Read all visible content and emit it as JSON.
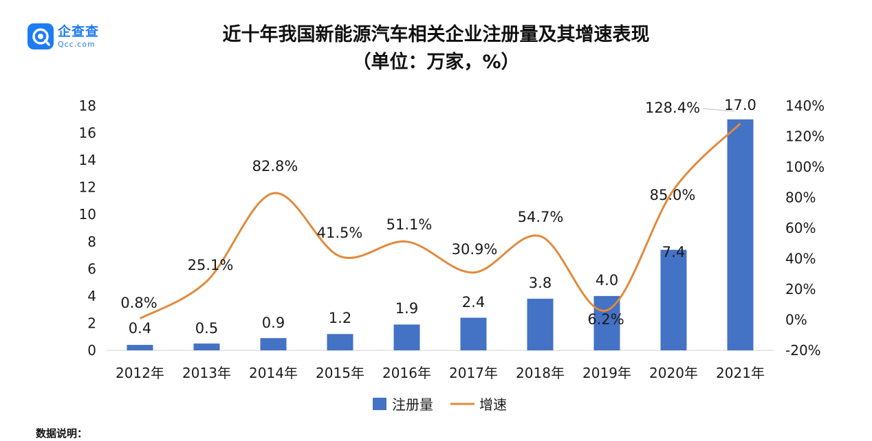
{
  "brand": {
    "name_cn": "企查查",
    "name_en": "Qcc.com"
  },
  "footer": {
    "note": "数据说明："
  },
  "chart_data": {
    "type": "bar",
    "title": "近十年我国新能源汽车相关企业注册量及其增速表现",
    "subtitle": "（单位：万家，%）",
    "categories": [
      "2012年",
      "2013年",
      "2014年",
      "2015年",
      "2016年",
      "2017年",
      "2018年",
      "2019年",
      "2020年",
      "2021年"
    ],
    "series": [
      {
        "name": "注册量",
        "type": "bar",
        "axis": "left",
        "color": "#4472c4",
        "values": [
          0.4,
          0.5,
          0.9,
          1.2,
          1.9,
          2.4,
          3.8,
          4.0,
          7.4,
          17.0
        ],
        "labels": [
          "0.4",
          "0.5",
          "0.9",
          "1.2",
          "1.9",
          "2.4",
          "3.8",
          "4.0",
          "7.4",
          "17.0"
        ]
      },
      {
        "name": "增速",
        "type": "line",
        "axis": "right",
        "color": "#e08a3c",
        "smooth": true,
        "values": [
          0.8,
          25.1,
          82.8,
          41.5,
          51.1,
          30.9,
          54.7,
          6.2,
          85.0,
          128.4
        ],
        "labels": [
          "0.8%",
          "25.1%",
          "82.8%",
          "41.5%",
          "51.1%",
          "30.9%",
          "54.7%",
          "6.2%",
          "85.0%",
          "128.4%"
        ]
      }
    ],
    "y_left": {
      "ticks": [
        "0",
        "2",
        "4",
        "6",
        "8",
        "10",
        "12",
        "14",
        "16",
        "18"
      ],
      "ylim": [
        0,
        18
      ]
    },
    "y_right": {
      "ticks": [
        "-20%",
        "0%",
        "20%",
        "40%",
        "60%",
        "80%",
        "100%",
        "120%",
        "140%"
      ],
      "ylim": [
        -20,
        140
      ]
    },
    "grid": false,
    "legend": {
      "position": "bottom",
      "items": [
        "注册量",
        "增速"
      ]
    }
  }
}
